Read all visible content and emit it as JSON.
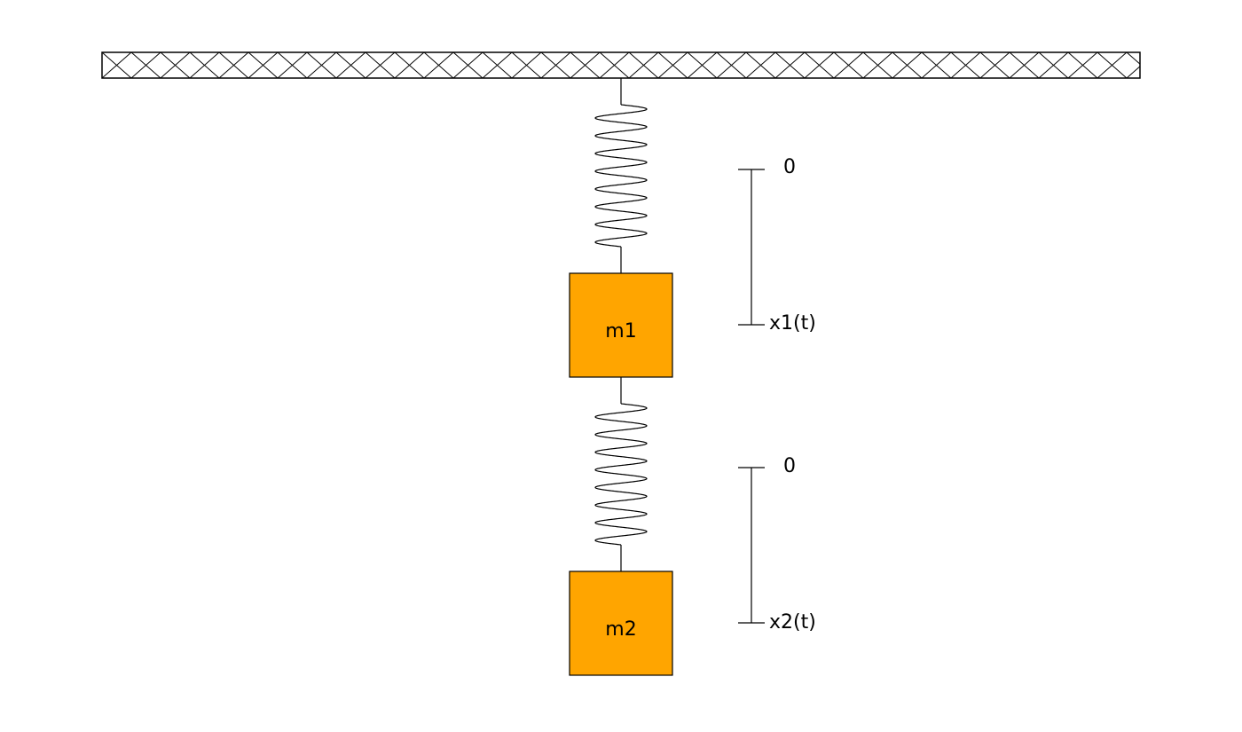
{
  "colors": {
    "mass_fill": "#ffa500",
    "stroke": "#000000",
    "background": "#ffffff"
  },
  "ceiling": {
    "pattern": "crosshatch"
  },
  "masses": [
    {
      "label": "m1"
    },
    {
      "label": "m2"
    }
  ],
  "displacement_scales": [
    {
      "zero_label": "0",
      "var_label": "x1(t)"
    },
    {
      "zero_label": "0",
      "var_label": "x2(t)"
    }
  ]
}
